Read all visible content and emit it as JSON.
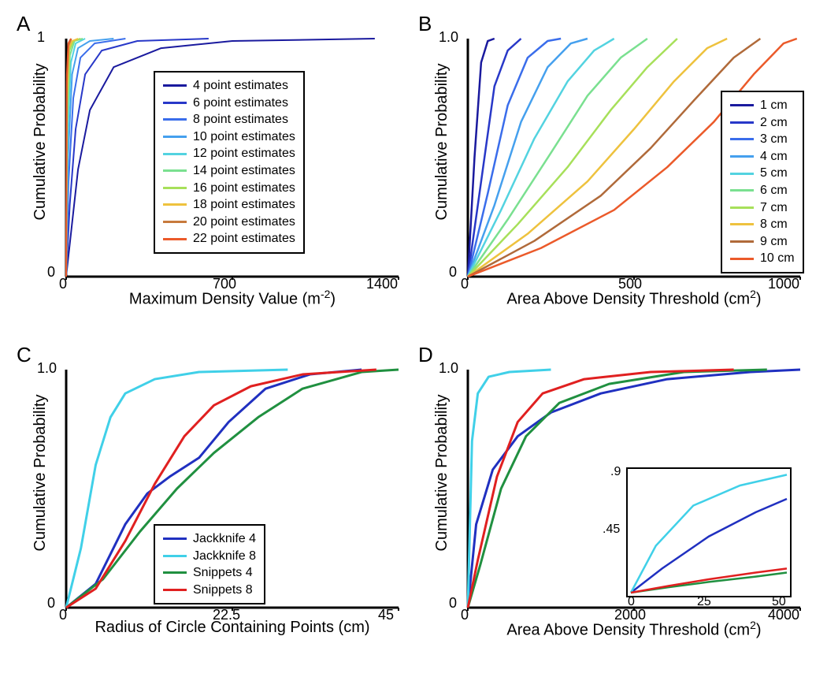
{
  "panelA": {
    "label": "A",
    "type": "line",
    "xlabel": "Maximum Density Value (m⁻²)",
    "ylabel": "Cumulative Probability",
    "xlim": [
      0,
      1400
    ],
    "ylim": [
      0,
      1.0
    ],
    "xticks": [
      0,
      700,
      1400
    ],
    "yticks": [
      0,
      1.0
    ],
    "legend": {
      "items": [
        {
          "label": "4 point estimates",
          "color": "#1a1a9e"
        },
        {
          "label": "6 point estimates",
          "color": "#2838c8"
        },
        {
          "label": "8 point estimates",
          "color": "#3a6deb"
        },
        {
          "label": "10 point estimates",
          "color": "#45a0ee"
        },
        {
          "label": "12 point estimates",
          "color": "#53d3e0"
        },
        {
          "label": "14 point estimates",
          "color": "#7ae090"
        },
        {
          "label": "16 point estimates",
          "color": "#a7e05a"
        },
        {
          "label": "18 point estimates",
          "color": "#eec23e"
        },
        {
          "label": "20 point estimates",
          "color": "#c77a3c"
        },
        {
          "label": "22 point estimates",
          "color": "#eb5a2a"
        }
      ]
    },
    "series": [
      {
        "color": "#1a1a9e",
        "points": [
          [
            0,
            0
          ],
          [
            20,
            0.18
          ],
          [
            50,
            0.45
          ],
          [
            100,
            0.7
          ],
          [
            200,
            0.88
          ],
          [
            400,
            0.96
          ],
          [
            700,
            0.99
          ],
          [
            1300,
            1.0
          ]
        ]
      },
      {
        "color": "#2838c8",
        "points": [
          [
            0,
            0
          ],
          [
            15,
            0.3
          ],
          [
            40,
            0.62
          ],
          [
            80,
            0.85
          ],
          [
            150,
            0.95
          ],
          [
            300,
            0.99
          ],
          [
            600,
            1.0
          ]
        ]
      },
      {
        "color": "#3a6deb",
        "points": [
          [
            0,
            0
          ],
          [
            10,
            0.4
          ],
          [
            30,
            0.75
          ],
          [
            60,
            0.92
          ],
          [
            120,
            0.98
          ],
          [
            250,
            1.0
          ]
        ]
      },
      {
        "color": "#45a0ee",
        "points": [
          [
            0,
            0
          ],
          [
            8,
            0.5
          ],
          [
            25,
            0.85
          ],
          [
            50,
            0.96
          ],
          [
            100,
            0.99
          ],
          [
            200,
            1.0
          ]
        ]
      },
      {
        "color": "#53d3e0",
        "points": [
          [
            0,
            0
          ],
          [
            6,
            0.58
          ],
          [
            20,
            0.9
          ],
          [
            40,
            0.98
          ],
          [
            80,
            1.0
          ]
        ]
      },
      {
        "color": "#7ae090",
        "points": [
          [
            0,
            0
          ],
          [
            5,
            0.65
          ],
          [
            16,
            0.93
          ],
          [
            35,
            0.99
          ],
          [
            70,
            1.0
          ]
        ]
      },
      {
        "color": "#a7e05a",
        "points": [
          [
            0,
            0
          ],
          [
            4,
            0.72
          ],
          [
            14,
            0.95
          ],
          [
            30,
            0.99
          ],
          [
            60,
            1.0
          ]
        ]
      },
      {
        "color": "#eec23e",
        "points": [
          [
            0,
            0
          ],
          [
            4,
            0.78
          ],
          [
            12,
            0.96
          ],
          [
            25,
            0.99
          ],
          [
            50,
            1.0
          ]
        ]
      },
      {
        "color": "#c77a3c",
        "points": [
          [
            0,
            0
          ],
          [
            3,
            0.82
          ],
          [
            10,
            0.97
          ],
          [
            22,
            1.0
          ]
        ]
      },
      {
        "color": "#eb5a2a",
        "points": [
          [
            0,
            0
          ],
          [
            3,
            0.85
          ],
          [
            9,
            0.98
          ],
          [
            20,
            1.0
          ]
        ]
      }
    ],
    "line_width": 2,
    "axis_width": 3,
    "background_color": "#ffffff"
  },
  "panelB": {
    "label": "B",
    "type": "line",
    "xlabel": "Area Above Density Threshold (cm²)",
    "ylabel": "Cumulative Probability",
    "xlim": [
      0,
      1000
    ],
    "ylim": [
      0,
      1.0
    ],
    "xticks": [
      0,
      500,
      1000
    ],
    "yticks": [
      0,
      1.0
    ],
    "legend": {
      "items": [
        {
          "label": "1 cm",
          "color": "#1a1a9e"
        },
        {
          "label": "2 cm",
          "color": "#2838c8"
        },
        {
          "label": "3 cm",
          "color": "#3a6deb"
        },
        {
          "label": "4 cm",
          "color": "#45a0ee"
        },
        {
          "label": "5 cm",
          "color": "#53d3e0"
        },
        {
          "label": "6 cm",
          "color": "#7ae090"
        },
        {
          "label": "7 cm",
          "color": "#a7e05a"
        },
        {
          "label": "8 cm",
          "color": "#eec23e"
        },
        {
          "label": "9 cm",
          "color": "#b06a3a"
        },
        {
          "label": "10 cm",
          "color": "#eb5a2a"
        }
      ]
    },
    "series": [
      {
        "color": "#1a1a9e",
        "points": [
          [
            0,
            0
          ],
          [
            20,
            0.5
          ],
          [
            40,
            0.9
          ],
          [
            60,
            0.99
          ],
          [
            80,
            1.0
          ]
        ]
      },
      {
        "color": "#2838c8",
        "points": [
          [
            0,
            0
          ],
          [
            40,
            0.4
          ],
          [
            80,
            0.8
          ],
          [
            120,
            0.95
          ],
          [
            160,
            1.0
          ]
        ]
      },
      {
        "color": "#3a6deb",
        "points": [
          [
            0,
            0
          ],
          [
            60,
            0.35
          ],
          [
            120,
            0.72
          ],
          [
            180,
            0.92
          ],
          [
            240,
            0.99
          ],
          [
            280,
            1.0
          ]
        ]
      },
      {
        "color": "#45a0ee",
        "points": [
          [
            0,
            0
          ],
          [
            80,
            0.3
          ],
          [
            160,
            0.65
          ],
          [
            240,
            0.88
          ],
          [
            310,
            0.98
          ],
          [
            360,
            1.0
          ]
        ]
      },
      {
        "color": "#53d3e0",
        "points": [
          [
            0,
            0
          ],
          [
            100,
            0.28
          ],
          [
            200,
            0.58
          ],
          [
            300,
            0.82
          ],
          [
            380,
            0.95
          ],
          [
            440,
            1.0
          ]
        ]
      },
      {
        "color": "#7ae090",
        "points": [
          [
            0,
            0
          ],
          [
            120,
            0.24
          ],
          [
            250,
            0.52
          ],
          [
            360,
            0.76
          ],
          [
            460,
            0.92
          ],
          [
            540,
            1.0
          ]
        ]
      },
      {
        "color": "#a7e05a",
        "points": [
          [
            0,
            0
          ],
          [
            150,
            0.22
          ],
          [
            300,
            0.46
          ],
          [
            430,
            0.7
          ],
          [
            540,
            0.88
          ],
          [
            630,
            1.0
          ]
        ]
      },
      {
        "color": "#eec23e",
        "points": [
          [
            0,
            0
          ],
          [
            180,
            0.18
          ],
          [
            360,
            0.4
          ],
          [
            500,
            0.62
          ],
          [
            620,
            0.82
          ],
          [
            720,
            0.96
          ],
          [
            780,
            1.0
          ]
        ]
      },
      {
        "color": "#b06a3a",
        "points": [
          [
            0,
            0
          ],
          [
            200,
            0.15
          ],
          [
            400,
            0.34
          ],
          [
            550,
            0.54
          ],
          [
            680,
            0.74
          ],
          [
            800,
            0.92
          ],
          [
            880,
            1.0
          ]
        ]
      },
      {
        "color": "#eb5a2a",
        "points": [
          [
            0,
            0
          ],
          [
            220,
            0.12
          ],
          [
            440,
            0.28
          ],
          [
            600,
            0.46
          ],
          [
            740,
            0.65
          ],
          [
            860,
            0.85
          ],
          [
            950,
            0.98
          ],
          [
            990,
            1.0
          ]
        ]
      }
    ],
    "line_width": 2.5,
    "axis_width": 3,
    "background_color": "#ffffff"
  },
  "panelC": {
    "label": "C",
    "type": "line",
    "xlabel": "Radius of Circle Containing Points (cm)",
    "ylabel": "Cumulative Probability",
    "xlim": [
      0,
      45
    ],
    "ylim": [
      0,
      1.0
    ],
    "xticks": [
      0,
      22.5,
      45
    ],
    "yticks": [
      0,
      1.0
    ],
    "legend": {
      "items": [
        {
          "label": "Jackknife 4",
          "color": "#2030c0"
        },
        {
          "label": "Jackknife 8",
          "color": "#40d0e8"
        },
        {
          "label": "Snippets  4",
          "color": "#209040"
        },
        {
          "label": "Snippets  8",
          "color": "#e02020"
        }
      ]
    },
    "series": [
      {
        "color": "#2030c0",
        "points": [
          [
            0,
            0
          ],
          [
            4,
            0.1
          ],
          [
            8,
            0.35
          ],
          [
            11,
            0.48
          ],
          [
            14,
            0.55
          ],
          [
            18,
            0.63
          ],
          [
            22,
            0.78
          ],
          [
            27,
            0.92
          ],
          [
            33,
            0.98
          ],
          [
            40,
            1.0
          ]
        ]
      },
      {
        "color": "#40d0e8",
        "points": [
          [
            0,
            0
          ],
          [
            2,
            0.25
          ],
          [
            4,
            0.6
          ],
          [
            6,
            0.8
          ],
          [
            8,
            0.9
          ],
          [
            12,
            0.96
          ],
          [
            18,
            0.99
          ],
          [
            30,
            1.0
          ]
        ]
      },
      {
        "color": "#209040",
        "points": [
          [
            0,
            0
          ],
          [
            5,
            0.12
          ],
          [
            10,
            0.32
          ],
          [
            15,
            0.5
          ],
          [
            20,
            0.65
          ],
          [
            26,
            0.8
          ],
          [
            32,
            0.92
          ],
          [
            40,
            0.99
          ],
          [
            45,
            1.0
          ]
        ]
      },
      {
        "color": "#e02020",
        "points": [
          [
            0,
            0
          ],
          [
            4,
            0.08
          ],
          [
            8,
            0.28
          ],
          [
            12,
            0.52
          ],
          [
            16,
            0.72
          ],
          [
            20,
            0.85
          ],
          [
            25,
            0.93
          ],
          [
            32,
            0.98
          ],
          [
            42,
            1.0
          ]
        ]
      }
    ],
    "line_width": 3,
    "axis_width": 3,
    "background_color": "#ffffff"
  },
  "panelD": {
    "label": "D",
    "type": "line",
    "xlabel": "Area Above Density Threshold (cm²)",
    "ylabel": "Cumulative Probability",
    "xlim": [
      0,
      4000
    ],
    "ylim": [
      0,
      1.0
    ],
    "xticks": [
      0,
      2000,
      4000
    ],
    "yticks": [
      0,
      1.0
    ],
    "series": [
      {
        "color": "#2030c0",
        "points": [
          [
            0,
            0
          ],
          [
            100,
            0.35
          ],
          [
            300,
            0.58
          ],
          [
            600,
            0.72
          ],
          [
            1000,
            0.82
          ],
          [
            1600,
            0.9
          ],
          [
            2400,
            0.96
          ],
          [
            3400,
            0.99
          ],
          [
            4000,
            1.0
          ]
        ]
      },
      {
        "color": "#40d0e8",
        "points": [
          [
            0,
            0
          ],
          [
            50,
            0.7
          ],
          [
            120,
            0.9
          ],
          [
            250,
            0.97
          ],
          [
            500,
            0.99
          ],
          [
            1000,
            1.0
          ]
        ]
      },
      {
        "color": "#209040",
        "points": [
          [
            0,
            0
          ],
          [
            150,
            0.18
          ],
          [
            400,
            0.5
          ],
          [
            700,
            0.72
          ],
          [
            1100,
            0.86
          ],
          [
            1700,
            0.94
          ],
          [
            2600,
            0.99
          ],
          [
            3600,
            1.0
          ]
        ]
      },
      {
        "color": "#e02020",
        "points": [
          [
            0,
            0
          ],
          [
            120,
            0.2
          ],
          [
            350,
            0.55
          ],
          [
            600,
            0.78
          ],
          [
            900,
            0.9
          ],
          [
            1400,
            0.96
          ],
          [
            2200,
            0.99
          ],
          [
            3200,
            1.0
          ]
        ]
      }
    ],
    "inset": {
      "xlim": [
        0,
        50
      ],
      "ylim": [
        0,
        0.9
      ],
      "xticks": [
        0,
        25,
        50
      ],
      "yticks": [
        ".45",
        ".9"
      ],
      "series": [
        {
          "color": "#2030c0",
          "points": [
            [
              0,
              0
            ],
            [
              10,
              0.18
            ],
            [
              25,
              0.42
            ],
            [
              40,
              0.6
            ],
            [
              50,
              0.7
            ]
          ]
        },
        {
          "color": "#40d0e8",
          "points": [
            [
              0,
              0
            ],
            [
              8,
              0.35
            ],
            [
              20,
              0.65
            ],
            [
              35,
              0.8
            ],
            [
              50,
              0.88
            ]
          ]
        },
        {
          "color": "#209040",
          "points": [
            [
              0,
              0
            ],
            [
              12,
              0.04
            ],
            [
              25,
              0.08
            ],
            [
              40,
              0.12
            ],
            [
              50,
              0.15
            ]
          ]
        },
        {
          "color": "#e02020",
          "points": [
            [
              0,
              0
            ],
            [
              12,
              0.05
            ],
            [
              25,
              0.1
            ],
            [
              40,
              0.15
            ],
            [
              50,
              0.18
            ]
          ]
        }
      ]
    },
    "line_width": 3,
    "axis_width": 3,
    "background_color": "#ffffff"
  }
}
